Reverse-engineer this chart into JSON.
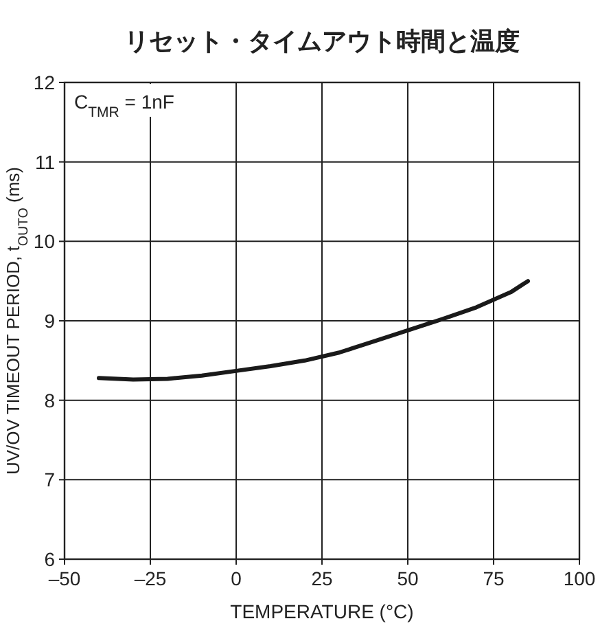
{
  "chart_data": {
    "type": "line",
    "title": "リセット・タイムアウト時間と温度",
    "xlabel": "TEMPERATURE (°C)",
    "ylabel": "UV/OV TIMEOUT PERIOD, t$_{OUTO}$ (ms)",
    "annotations": [
      "C$_{TMR}$ = 1nF"
    ],
    "series": [
      {
        "color": "#1a1a1a",
        "x": [
          -40,
          -30,
          -20,
          -10,
          0,
          10,
          20,
          30,
          40,
          50,
          60,
          70,
          80,
          85
        ],
        "values": [
          8.28,
          8.26,
          8.27,
          8.31,
          8.37,
          8.43,
          8.5,
          8.6,
          8.74,
          8.88,
          9.02,
          9.17,
          9.36,
          9.5
        ]
      }
    ],
    "xlim": [
      -50,
      100
    ],
    "xticks": [
      {
        "value": -50,
        "label": "–50"
      },
      {
        "value": -25,
        "label": "–25"
      },
      0,
      25,
      50,
      75,
      100
    ],
    "ylim": [
      6,
      12
    ],
    "yticks": [
      6,
      7,
      8,
      9,
      10,
      11,
      12
    ],
    "grid": true,
    "marker": "none",
    "line_style": "solid"
  }
}
